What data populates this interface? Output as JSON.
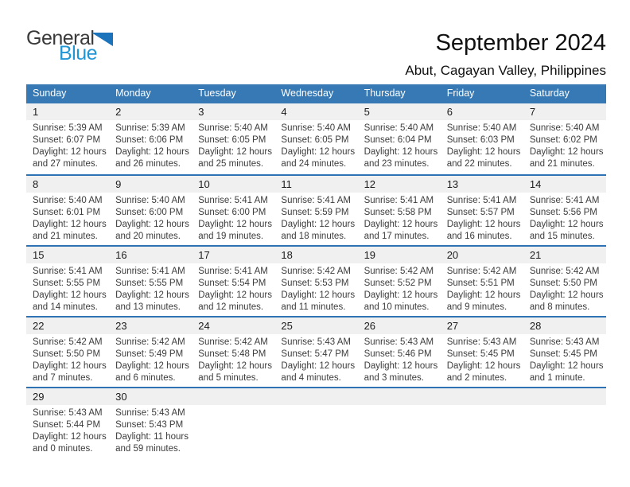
{
  "logo": {
    "line1": "General",
    "line2": "Blue"
  },
  "title": "September 2024",
  "subtitle": "Abut, Cagayan Valley, Philippines",
  "colors": {
    "header_bg": "#3679B5",
    "separator": "#2E74B5",
    "band_bg": "#F0F0F0",
    "logo_blue": "#2196D4",
    "triangle_blue": "#1B74BB"
  },
  "day_headers": [
    "Sunday",
    "Monday",
    "Tuesday",
    "Wednesday",
    "Thursday",
    "Friday",
    "Saturday"
  ],
  "weeks": [
    [
      {
        "day": "1",
        "sunrise": "Sunrise: 5:39 AM",
        "sunset": "Sunset: 6:07 PM",
        "daylight1": "Daylight: 12 hours",
        "daylight2": "and 27 minutes."
      },
      {
        "day": "2",
        "sunrise": "Sunrise: 5:39 AM",
        "sunset": "Sunset: 6:06 PM",
        "daylight1": "Daylight: 12 hours",
        "daylight2": "and 26 minutes."
      },
      {
        "day": "3",
        "sunrise": "Sunrise: 5:40 AM",
        "sunset": "Sunset: 6:05 PM",
        "daylight1": "Daylight: 12 hours",
        "daylight2": "and 25 minutes."
      },
      {
        "day": "4",
        "sunrise": "Sunrise: 5:40 AM",
        "sunset": "Sunset: 6:05 PM",
        "daylight1": "Daylight: 12 hours",
        "daylight2": "and 24 minutes."
      },
      {
        "day": "5",
        "sunrise": "Sunrise: 5:40 AM",
        "sunset": "Sunset: 6:04 PM",
        "daylight1": "Daylight: 12 hours",
        "daylight2": "and 23 minutes."
      },
      {
        "day": "6",
        "sunrise": "Sunrise: 5:40 AM",
        "sunset": "Sunset: 6:03 PM",
        "daylight1": "Daylight: 12 hours",
        "daylight2": "and 22 minutes."
      },
      {
        "day": "7",
        "sunrise": "Sunrise: 5:40 AM",
        "sunset": "Sunset: 6:02 PM",
        "daylight1": "Daylight: 12 hours",
        "daylight2": "and 21 minutes."
      }
    ],
    [
      {
        "day": "8",
        "sunrise": "Sunrise: 5:40 AM",
        "sunset": "Sunset: 6:01 PM",
        "daylight1": "Daylight: 12 hours",
        "daylight2": "and 21 minutes."
      },
      {
        "day": "9",
        "sunrise": "Sunrise: 5:40 AM",
        "sunset": "Sunset: 6:00 PM",
        "daylight1": "Daylight: 12 hours",
        "daylight2": "and 20 minutes."
      },
      {
        "day": "10",
        "sunrise": "Sunrise: 5:41 AM",
        "sunset": "Sunset: 6:00 PM",
        "daylight1": "Daylight: 12 hours",
        "daylight2": "and 19 minutes."
      },
      {
        "day": "11",
        "sunrise": "Sunrise: 5:41 AM",
        "sunset": "Sunset: 5:59 PM",
        "daylight1": "Daylight: 12 hours",
        "daylight2": "and 18 minutes."
      },
      {
        "day": "12",
        "sunrise": "Sunrise: 5:41 AM",
        "sunset": "Sunset: 5:58 PM",
        "daylight1": "Daylight: 12 hours",
        "daylight2": "and 17 minutes."
      },
      {
        "day": "13",
        "sunrise": "Sunrise: 5:41 AM",
        "sunset": "Sunset: 5:57 PM",
        "daylight1": "Daylight: 12 hours",
        "daylight2": "and 16 minutes."
      },
      {
        "day": "14",
        "sunrise": "Sunrise: 5:41 AM",
        "sunset": "Sunset: 5:56 PM",
        "daylight1": "Daylight: 12 hours",
        "daylight2": "and 15 minutes."
      }
    ],
    [
      {
        "day": "15",
        "sunrise": "Sunrise: 5:41 AM",
        "sunset": "Sunset: 5:55 PM",
        "daylight1": "Daylight: 12 hours",
        "daylight2": "and 14 minutes."
      },
      {
        "day": "16",
        "sunrise": "Sunrise: 5:41 AM",
        "sunset": "Sunset: 5:55 PM",
        "daylight1": "Daylight: 12 hours",
        "daylight2": "and 13 minutes."
      },
      {
        "day": "17",
        "sunrise": "Sunrise: 5:41 AM",
        "sunset": "Sunset: 5:54 PM",
        "daylight1": "Daylight: 12 hours",
        "daylight2": "and 12 minutes."
      },
      {
        "day": "18",
        "sunrise": "Sunrise: 5:42 AM",
        "sunset": "Sunset: 5:53 PM",
        "daylight1": "Daylight: 12 hours",
        "daylight2": "and 11 minutes."
      },
      {
        "day": "19",
        "sunrise": "Sunrise: 5:42 AM",
        "sunset": "Sunset: 5:52 PM",
        "daylight1": "Daylight: 12 hours",
        "daylight2": "and 10 minutes."
      },
      {
        "day": "20",
        "sunrise": "Sunrise: 5:42 AM",
        "sunset": "Sunset: 5:51 PM",
        "daylight1": "Daylight: 12 hours",
        "daylight2": "and 9 minutes."
      },
      {
        "day": "21",
        "sunrise": "Sunrise: 5:42 AM",
        "sunset": "Sunset: 5:50 PM",
        "daylight1": "Daylight: 12 hours",
        "daylight2": "and 8 minutes."
      }
    ],
    [
      {
        "day": "22",
        "sunrise": "Sunrise: 5:42 AM",
        "sunset": "Sunset: 5:50 PM",
        "daylight1": "Daylight: 12 hours",
        "daylight2": "and 7 minutes."
      },
      {
        "day": "23",
        "sunrise": "Sunrise: 5:42 AM",
        "sunset": "Sunset: 5:49 PM",
        "daylight1": "Daylight: 12 hours",
        "daylight2": "and 6 minutes."
      },
      {
        "day": "24",
        "sunrise": "Sunrise: 5:42 AM",
        "sunset": "Sunset: 5:48 PM",
        "daylight1": "Daylight: 12 hours",
        "daylight2": "and 5 minutes."
      },
      {
        "day": "25",
        "sunrise": "Sunrise: 5:43 AM",
        "sunset": "Sunset: 5:47 PM",
        "daylight1": "Daylight: 12 hours",
        "daylight2": "and 4 minutes."
      },
      {
        "day": "26",
        "sunrise": "Sunrise: 5:43 AM",
        "sunset": "Sunset: 5:46 PM",
        "daylight1": "Daylight: 12 hours",
        "daylight2": "and 3 minutes."
      },
      {
        "day": "27",
        "sunrise": "Sunrise: 5:43 AM",
        "sunset": "Sunset: 5:45 PM",
        "daylight1": "Daylight: 12 hours",
        "daylight2": "and 2 minutes."
      },
      {
        "day": "28",
        "sunrise": "Sunrise: 5:43 AM",
        "sunset": "Sunset: 5:45 PM",
        "daylight1": "Daylight: 12 hours",
        "daylight2": "and 1 minute."
      }
    ],
    [
      {
        "day": "29",
        "sunrise": "Sunrise: 5:43 AM",
        "sunset": "Sunset: 5:44 PM",
        "daylight1": "Daylight: 12 hours",
        "daylight2": "and 0 minutes."
      },
      {
        "day": "30",
        "sunrise": "Sunrise: 5:43 AM",
        "sunset": "Sunset: 5:43 PM",
        "daylight1": "Daylight: 11 hours",
        "daylight2": "and 59 minutes."
      },
      null,
      null,
      null,
      null,
      null
    ]
  ]
}
